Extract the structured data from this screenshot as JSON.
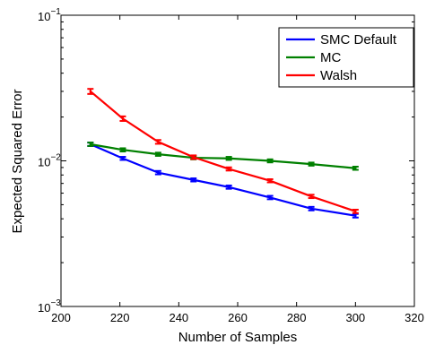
{
  "chart_data": {
    "type": "line",
    "title": "",
    "xlabel": "Number of Samples",
    "ylabel": "Expected Squared Error",
    "xlim": [
      200,
      320
    ],
    "ylim": [
      0.001,
      0.1
    ],
    "yscale": "log",
    "x_ticks": [
      {
        "value": 200,
        "label": "200"
      },
      {
        "value": 220,
        "label": "220"
      },
      {
        "value": 240,
        "label": "240"
      },
      {
        "value": 260,
        "label": "260"
      },
      {
        "value": 280,
        "label": "280"
      },
      {
        "value": 300,
        "label": "300"
      },
      {
        "value": 320,
        "label": "320"
      }
    ],
    "y_ticks": [
      {
        "value": 0.001,
        "base": "10",
        "exp": "−3"
      },
      {
        "value": 0.01,
        "base": "10",
        "exp": "−2"
      },
      {
        "value": 0.1,
        "base": "10",
        "exp": "−1"
      }
    ],
    "grid": false,
    "legend_position": "top-right",
    "x": [
      210,
      221,
      233,
      245,
      257,
      271,
      285,
      300
    ],
    "series": [
      {
        "name": "SMC Default",
        "color": "#0000ff",
        "values": [
          0.013,
          0.0104,
          0.0083,
          0.0074,
          0.0066,
          0.0056,
          0.0047,
          0.0042
        ],
        "error": [
          0.00035,
          0.00025,
          0.00022,
          0.00018,
          0.00017,
          0.00015,
          0.00013,
          0.00012
        ]
      },
      {
        "name": "MC",
        "color": "#008000",
        "values": [
          0.013,
          0.0119,
          0.0111,
          0.0105,
          0.0104,
          0.01,
          0.0095,
          0.0089
        ],
        "error": [
          0.00035,
          0.0003,
          0.00028,
          0.00026,
          0.00025,
          0.00024,
          0.00023,
          0.00022
        ]
      },
      {
        "name": "Walsh",
        "color": "#ff0000",
        "values": [
          0.03,
          0.0195,
          0.0135,
          0.0106,
          0.0088,
          0.0073,
          0.0057,
          0.0045
        ],
        "error": [
          0.0012,
          0.0007,
          0.0004,
          0.0003,
          0.00022,
          0.00018,
          0.00015,
          0.00012
        ]
      }
    ]
  }
}
